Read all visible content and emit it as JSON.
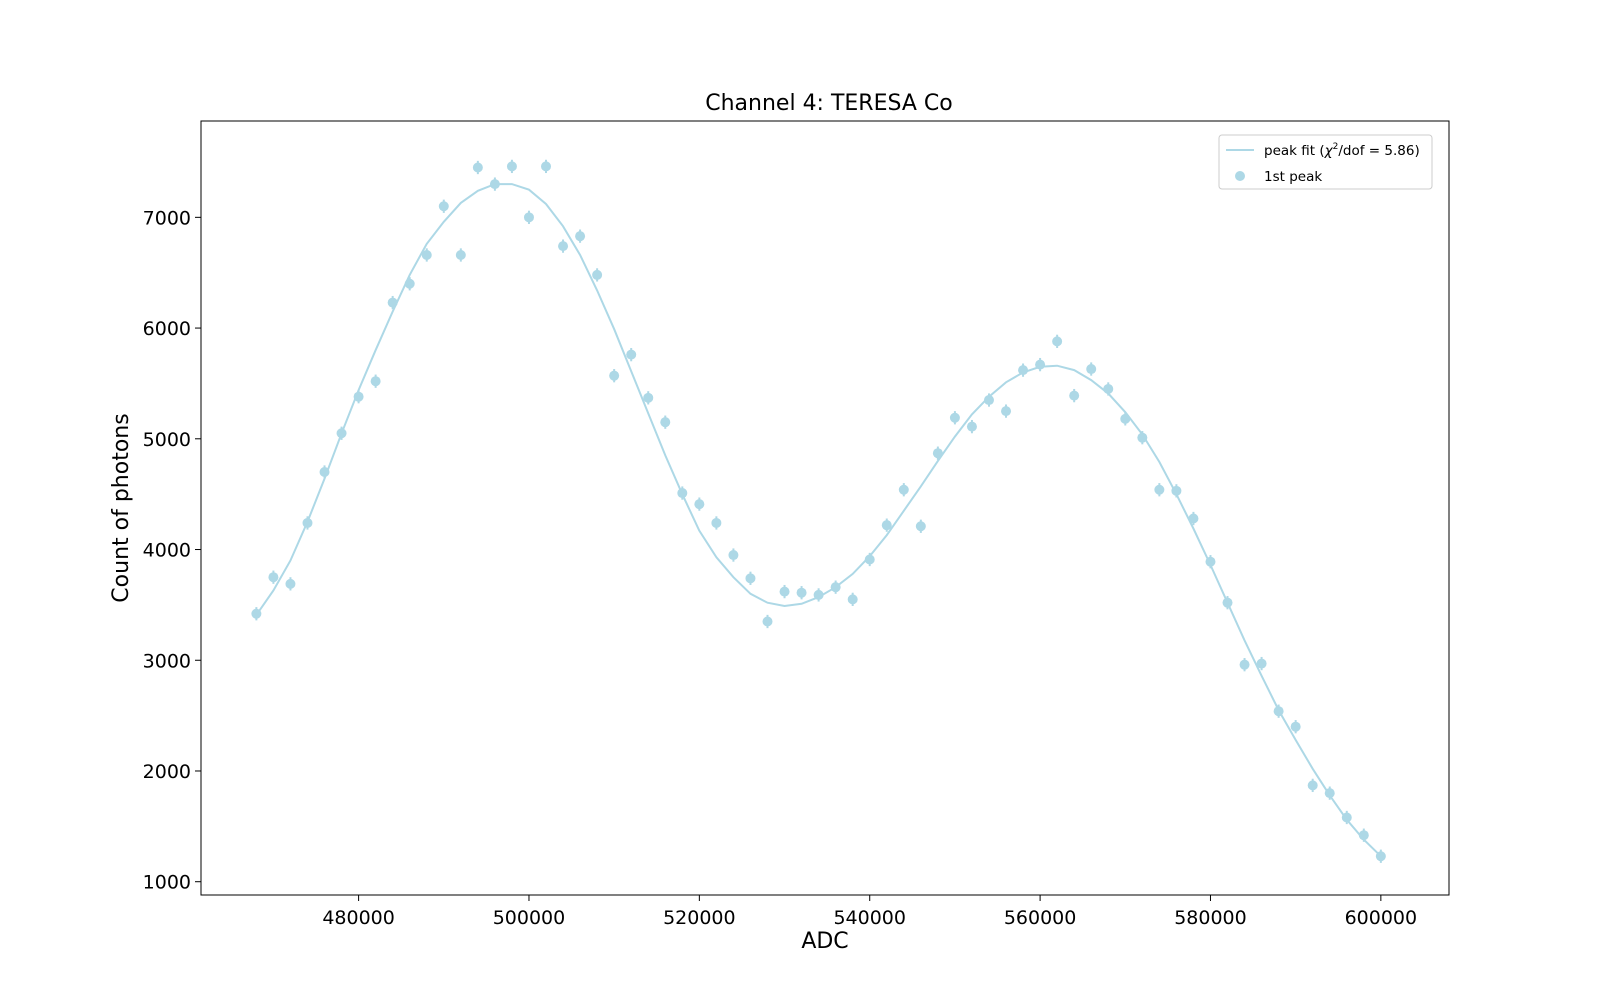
{
  "chart_data": {
    "type": "scatter",
    "title": "Channel 4: TERESA Co",
    "xlabel": "ADC",
    "ylabel": "Count of photons",
    "xlim": [
      461500,
      608000
    ],
    "ylim": [
      880,
      7870
    ],
    "xticks": [
      480000,
      500000,
      520000,
      540000,
      560000,
      580000,
      600000
    ],
    "yticks": [
      1000,
      2000,
      3000,
      4000,
      5000,
      6000,
      7000
    ],
    "grid": false,
    "legend_position": "top-right",
    "color": "#add8e6",
    "legend": {
      "fit_label_prefix": "peak fit (",
      "fit_label_chi": "χ",
      "fit_label_sup": "2",
      "fit_label_suffix": "/dof = 5.86)",
      "points_label": "1st peak"
    },
    "series": [
      {
        "name": "1st peak",
        "kind": "points_with_errorbars",
        "x": [
          468000,
          470000,
          472000,
          474000,
          476000,
          478000,
          480000,
          482000,
          484000,
          486000,
          488000,
          490000,
          492000,
          494000,
          496000,
          498000,
          500000,
          502000,
          504000,
          506000,
          508000,
          510000,
          512000,
          514000,
          516000,
          518000,
          520000,
          522000,
          524000,
          526000,
          528000,
          530000,
          532000,
          534000,
          536000,
          538000,
          540000,
          542000,
          544000,
          546000,
          548000,
          550000,
          552000,
          554000,
          556000,
          558000,
          560000,
          562000,
          564000,
          566000,
          568000,
          570000,
          572000,
          574000,
          576000,
          578000,
          580000,
          582000,
          584000,
          586000,
          588000,
          590000,
          592000,
          594000,
          596000,
          598000,
          600000
        ],
        "y": [
          3420,
          3750,
          3690,
          4240,
          4700,
          5050,
          5380,
          5520,
          6230,
          6400,
          6660,
          7100,
          6660,
          7450,
          7300,
          7460,
          7000,
          7460,
          6740,
          6830,
          6480,
          5570,
          5760,
          5370,
          5150,
          4510,
          4410,
          4240,
          3950,
          3740,
          3350,
          3620,
          3610,
          3590,
          3660,
          3550,
          3910,
          4220,
          4540,
          4210,
          4870,
          5190,
          5110,
          5350,
          5250,
          5620,
          5670,
          5880,
          5390,
          5630,
          5450,
          5180,
          5010,
          4540,
          4530,
          4280,
          3890,
          3520,
          2960,
          2970,
          2540,
          2400,
          1870,
          1800,
          1580,
          1420,
          1230
        ],
        "yerr": 60
      },
      {
        "name": "peak fit (χ2/dof = 5.86)",
        "kind": "line",
        "x": [
          468000,
          470000,
          472000,
          474000,
          476000,
          478000,
          480000,
          482000,
          484000,
          486000,
          488000,
          490000,
          492000,
          494000,
          496000,
          498000,
          500000,
          502000,
          504000,
          506000,
          508000,
          510000,
          512000,
          514000,
          516000,
          518000,
          520000,
          522000,
          524000,
          526000,
          528000,
          530000,
          532000,
          534000,
          536000,
          538000,
          540000,
          542000,
          544000,
          546000,
          548000,
          550000,
          552000,
          554000,
          556000,
          558000,
          560000,
          562000,
          564000,
          566000,
          568000,
          570000,
          572000,
          574000,
          576000,
          578000,
          580000,
          582000,
          584000,
          586000,
          588000,
          590000,
          592000,
          594000,
          596000,
          598000,
          600000
        ],
        "y": [
          3410,
          3630,
          3900,
          4250,
          4640,
          5050,
          5440,
          5800,
          6150,
          6480,
          6760,
          6960,
          7130,
          7240,
          7300,
          7300,
          7250,
          7120,
          6920,
          6660,
          6340,
          5990,
          5610,
          5230,
          4850,
          4500,
          4170,
          3930,
          3750,
          3600,
          3520,
          3490,
          3510,
          3570,
          3660,
          3780,
          3940,
          4130,
          4350,
          4570,
          4800,
          5020,
          5220,
          5380,
          5510,
          5600,
          5650,
          5660,
          5620,
          5530,
          5410,
          5240,
          5040,
          4790,
          4500,
          4190,
          3860,
          3520,
          3180,
          2860,
          2550,
          2280,
          2020,
          1780,
          1560,
          1380,
          1230
        ]
      }
    ]
  }
}
